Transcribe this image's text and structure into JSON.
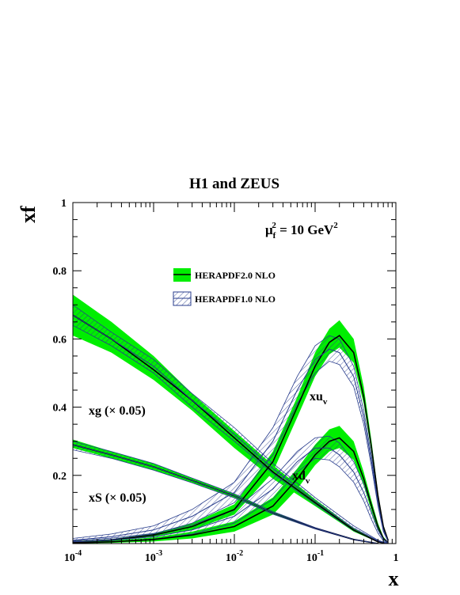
{
  "chart_data": {
    "type": "line",
    "title": "H1 and ZEUS",
    "xlabel": "x",
    "ylabel": "xf",
    "x_scale": "log",
    "xlim": [
      0.0001,
      1
    ],
    "ylim": [
      0.0,
      1.0
    ],
    "x_ticks": [
      {
        "value": 0.0001,
        "base": "10",
        "exp": "-4"
      },
      {
        "value": 0.001,
        "base": "10",
        "exp": "-3"
      },
      {
        "value": 0.01,
        "base": "10",
        "exp": "-2"
      },
      {
        "value": 0.1,
        "base": "10",
        "exp": "-1"
      },
      {
        "value": 1,
        "base": "1",
        "exp": ""
      }
    ],
    "y_ticks": [
      {
        "value": 0.2,
        "label": "0.2"
      },
      {
        "value": 0.4,
        "label": "0.4"
      },
      {
        "value": 0.6,
        "label": "0.6"
      },
      {
        "value": 0.8,
        "label": "0.8"
      },
      {
        "value": 1.0,
        "label": "1"
      }
    ],
    "scale_label": {
      "mu": "μ",
      "sub": "f",
      "sup": "2",
      "mid": " = 10 GeV",
      "unit_sup": "2"
    },
    "legend": {
      "placement": "upper-center",
      "entries": [
        {
          "label": "HERAPDF2.0 NLO",
          "style": "green-band"
        },
        {
          "label": "HERAPDF1.0 NLO",
          "style": "hatched-band"
        }
      ]
    },
    "curve_labels": [
      {
        "text": "xg (× 0.05)",
        "series": "xg"
      },
      {
        "text": "xS (× 0.05)",
        "series": "xS"
      },
      {
        "text": "xu",
        "sub": "v",
        "series": "xuv"
      },
      {
        "text": "xd",
        "sub": "v",
        "series": "xdv"
      }
    ],
    "series": [
      {
        "id": "xg",
        "band": "HERAPDF2.0 NLO",
        "x": [
          0.0001,
          0.0003,
          0.001,
          0.003,
          0.01,
          0.03,
          0.1,
          0.3,
          0.6,
          0.8
        ],
        "central": [
          0.67,
          0.6,
          0.51,
          0.42,
          0.31,
          0.21,
          0.12,
          0.04,
          0.005,
          0.0
        ],
        "lower": [
          0.61,
          0.56,
          0.48,
          0.39,
          0.28,
          0.19,
          0.11,
          0.035,
          0.004,
          0.0
        ],
        "upper": [
          0.73,
          0.65,
          0.55,
          0.44,
          0.33,
          0.23,
          0.13,
          0.045,
          0.006,
          0.0
        ]
      },
      {
        "id": "xg",
        "band": "HERAPDF1.0 NLO",
        "x": [
          0.0001,
          0.0003,
          0.001,
          0.003,
          0.01,
          0.03,
          0.1,
          0.3,
          0.6,
          0.8
        ],
        "central": [
          0.67,
          0.6,
          0.52,
          0.42,
          0.32,
          0.22,
          0.125,
          0.045,
          0.008,
          0.0
        ],
        "lower": [
          0.64,
          0.58,
          0.5,
          0.4,
          0.3,
          0.205,
          0.115,
          0.038,
          0.006,
          0.0
        ],
        "upper": [
          0.7,
          0.62,
          0.54,
          0.44,
          0.34,
          0.235,
          0.135,
          0.052,
          0.01,
          0.0
        ]
      },
      {
        "id": "xS",
        "band": "HERAPDF2.0 NLO",
        "x": [
          0.0001,
          0.0003,
          0.001,
          0.003,
          0.01,
          0.03,
          0.1,
          0.3,
          0.6
        ],
        "central": [
          0.29,
          0.26,
          0.225,
          0.185,
          0.14,
          0.09,
          0.045,
          0.012,
          0.0
        ],
        "lower": [
          0.28,
          0.25,
          0.215,
          0.178,
          0.134,
          0.086,
          0.043,
          0.011,
          0.0
        ],
        "upper": [
          0.305,
          0.27,
          0.235,
          0.192,
          0.146,
          0.094,
          0.047,
          0.013,
          0.0
        ]
      },
      {
        "id": "xS",
        "band": "HERAPDF1.0 NLO",
        "x": [
          0.0001,
          0.0003,
          0.001,
          0.003,
          0.01,
          0.03,
          0.1,
          0.3,
          0.6
        ],
        "central": [
          0.29,
          0.26,
          0.225,
          0.185,
          0.14,
          0.09,
          0.045,
          0.012,
          0.0
        ],
        "lower": [
          0.275,
          0.25,
          0.215,
          0.178,
          0.134,
          0.086,
          0.043,
          0.011,
          0.0
        ],
        "upper": [
          0.3,
          0.27,
          0.235,
          0.192,
          0.146,
          0.094,
          0.047,
          0.013,
          0.0
        ]
      },
      {
        "id": "xuv",
        "band": "HERAPDF2.0 NLO",
        "x": [
          0.0001,
          0.0003,
          0.001,
          0.003,
          0.01,
          0.03,
          0.06,
          0.1,
          0.15,
          0.2,
          0.3,
          0.4,
          0.5,
          0.6,
          0.7,
          0.8
        ],
        "central": [
          0.005,
          0.01,
          0.025,
          0.05,
          0.1,
          0.24,
          0.4,
          0.52,
          0.59,
          0.61,
          0.56,
          0.43,
          0.28,
          0.14,
          0.05,
          0.01
        ],
        "lower": [
          0.003,
          0.007,
          0.02,
          0.04,
          0.085,
          0.21,
          0.37,
          0.49,
          0.555,
          0.575,
          0.53,
          0.41,
          0.265,
          0.13,
          0.045,
          0.008
        ],
        "upper": [
          0.007,
          0.013,
          0.03,
          0.06,
          0.115,
          0.27,
          0.43,
          0.56,
          0.63,
          0.655,
          0.6,
          0.46,
          0.3,
          0.15,
          0.055,
          0.012
        ]
      },
      {
        "id": "xuv",
        "band": "HERAPDF1.0 NLO",
        "x": [
          0.0001,
          0.0003,
          0.001,
          0.003,
          0.01,
          0.03,
          0.06,
          0.1,
          0.15,
          0.2,
          0.3,
          0.4,
          0.5,
          0.6,
          0.7,
          0.8
        ],
        "central": [
          0.01,
          0.02,
          0.04,
          0.08,
          0.15,
          0.3,
          0.45,
          0.54,
          0.57,
          0.56,
          0.49,
          0.37,
          0.24,
          0.12,
          0.04,
          0.008
        ],
        "lower": [
          0.005,
          0.012,
          0.028,
          0.06,
          0.12,
          0.26,
          0.41,
          0.5,
          0.535,
          0.525,
          0.46,
          0.35,
          0.225,
          0.11,
          0.035,
          0.006
        ],
        "upper": [
          0.015,
          0.028,
          0.052,
          0.1,
          0.18,
          0.34,
          0.49,
          0.58,
          0.61,
          0.6,
          0.52,
          0.39,
          0.255,
          0.13,
          0.045,
          0.01
        ]
      },
      {
        "id": "xdv",
        "band": "HERAPDF2.0 NLO",
        "x": [
          0.0001,
          0.0003,
          0.001,
          0.003,
          0.01,
          0.03,
          0.06,
          0.1,
          0.15,
          0.2,
          0.3,
          0.4,
          0.5,
          0.6,
          0.7,
          0.8
        ],
        "central": [
          0.002,
          0.005,
          0.012,
          0.025,
          0.05,
          0.11,
          0.19,
          0.26,
          0.3,
          0.31,
          0.27,
          0.19,
          0.11,
          0.05,
          0.015,
          0.003
        ],
        "lower": [
          0.001,
          0.002,
          0.006,
          0.015,
          0.035,
          0.085,
          0.16,
          0.23,
          0.27,
          0.28,
          0.245,
          0.17,
          0.095,
          0.04,
          0.01,
          0.002
        ],
        "upper": [
          0.003,
          0.008,
          0.018,
          0.035,
          0.065,
          0.135,
          0.22,
          0.29,
          0.335,
          0.345,
          0.3,
          0.21,
          0.125,
          0.06,
          0.02,
          0.004
        ]
      },
      {
        "id": "xdv",
        "band": "HERAPDF1.0 NLO",
        "x": [
          0.0001,
          0.0003,
          0.001,
          0.003,
          0.01,
          0.03,
          0.06,
          0.1,
          0.15,
          0.2,
          0.3,
          0.4,
          0.5,
          0.6,
          0.7,
          0.8
        ],
        "central": [
          0.005,
          0.01,
          0.02,
          0.04,
          0.08,
          0.16,
          0.24,
          0.28,
          0.28,
          0.26,
          0.21,
          0.15,
          0.09,
          0.04,
          0.012,
          0.002
        ],
        "lower": [
          0.002,
          0.005,
          0.012,
          0.028,
          0.06,
          0.13,
          0.21,
          0.25,
          0.245,
          0.225,
          0.18,
          0.125,
          0.07,
          0.03,
          0.008,
          0.001
        ],
        "upper": [
          0.008,
          0.016,
          0.03,
          0.055,
          0.1,
          0.19,
          0.27,
          0.31,
          0.315,
          0.295,
          0.24,
          0.175,
          0.11,
          0.05,
          0.016,
          0.003
        ]
      }
    ],
    "colors": {
      "green_band": "#00ee00",
      "hatch_band": "#283c8c",
      "central_line": "#000000",
      "frame": "#000000"
    },
    "grid": false
  }
}
